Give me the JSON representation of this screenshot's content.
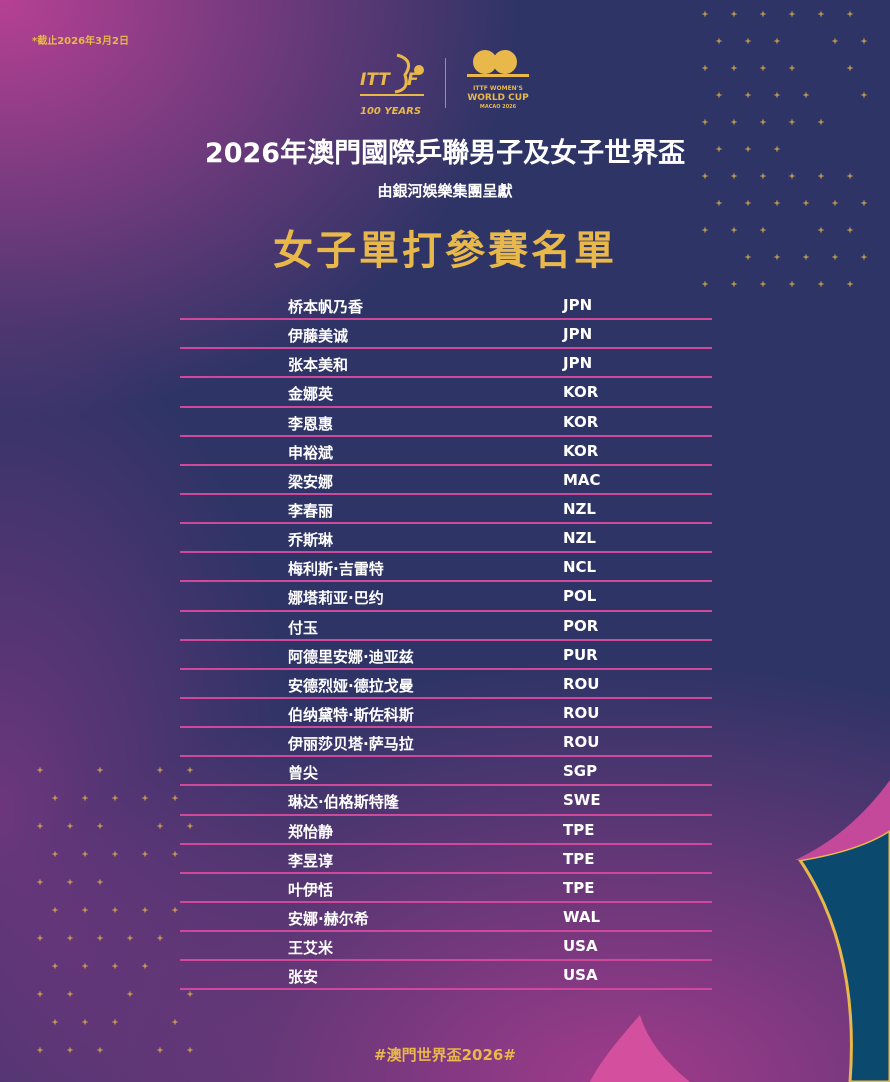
{
  "note": "*截止2026年3月2日",
  "logos": {
    "ittf": "ITTF 100 YEARS",
    "world_cup": "ITTF WOMEN'S WORLD CUP MACAO 2026"
  },
  "title": "2026年澳門國際乒聯男子及女子世界盃",
  "subtitle": "由銀河娛樂集團呈獻",
  "main_title": "女子單打參賽名單",
  "players": [
    {
      "name": "桥本帆乃香",
      "code": "JPN"
    },
    {
      "name": "伊藤美诚",
      "code": "JPN"
    },
    {
      "name": "张本美和",
      "code": "JPN"
    },
    {
      "name": "金娜英",
      "code": "KOR"
    },
    {
      "name": "李恩惠",
      "code": "KOR"
    },
    {
      "name": "申裕斌",
      "code": "KOR"
    },
    {
      "name": "梁安娜",
      "code": "MAC"
    },
    {
      "name": "李春丽",
      "code": "NZL"
    },
    {
      "name": "乔斯琳",
      "code": "NZL"
    },
    {
      "name": "梅利斯·吉雷特",
      "code": "NCL"
    },
    {
      "name": "娜塔莉亚·巴约",
      "code": "POL"
    },
    {
      "name": "付玉",
      "code": "POR"
    },
    {
      "name": "阿德里安娜·迪亚兹",
      "code": "PUR"
    },
    {
      "name": "安德烈娅·德拉戈曼",
      "code": "ROU"
    },
    {
      "name": "伯纳黛特·斯佐科斯",
      "code": "ROU"
    },
    {
      "name": "伊丽莎贝塔·萨马拉",
      "code": "ROU"
    },
    {
      "name": "曾尖",
      "code": "SGP"
    },
    {
      "name": "琳达·伯格斯特隆",
      "code": "SWE"
    },
    {
      "name": "郑怡静",
      "code": "TPE"
    },
    {
      "name": "李昱谆",
      "code": "TPE"
    },
    {
      "name": "叶伊恬",
      "code": "TPE"
    },
    {
      "name": "安娜·赫尔希",
      "code": "WAL"
    },
    {
      "name": "王艾米",
      "code": "USA"
    },
    {
      "name": "张安",
      "code": "USA"
    }
  ],
  "hashtag": "#澳門世界盃2026#",
  "colors": {
    "gold": "#e8b84a",
    "navy": "#2e3466",
    "magenta": "#d0489a",
    "teal": "#0b4a6e"
  }
}
